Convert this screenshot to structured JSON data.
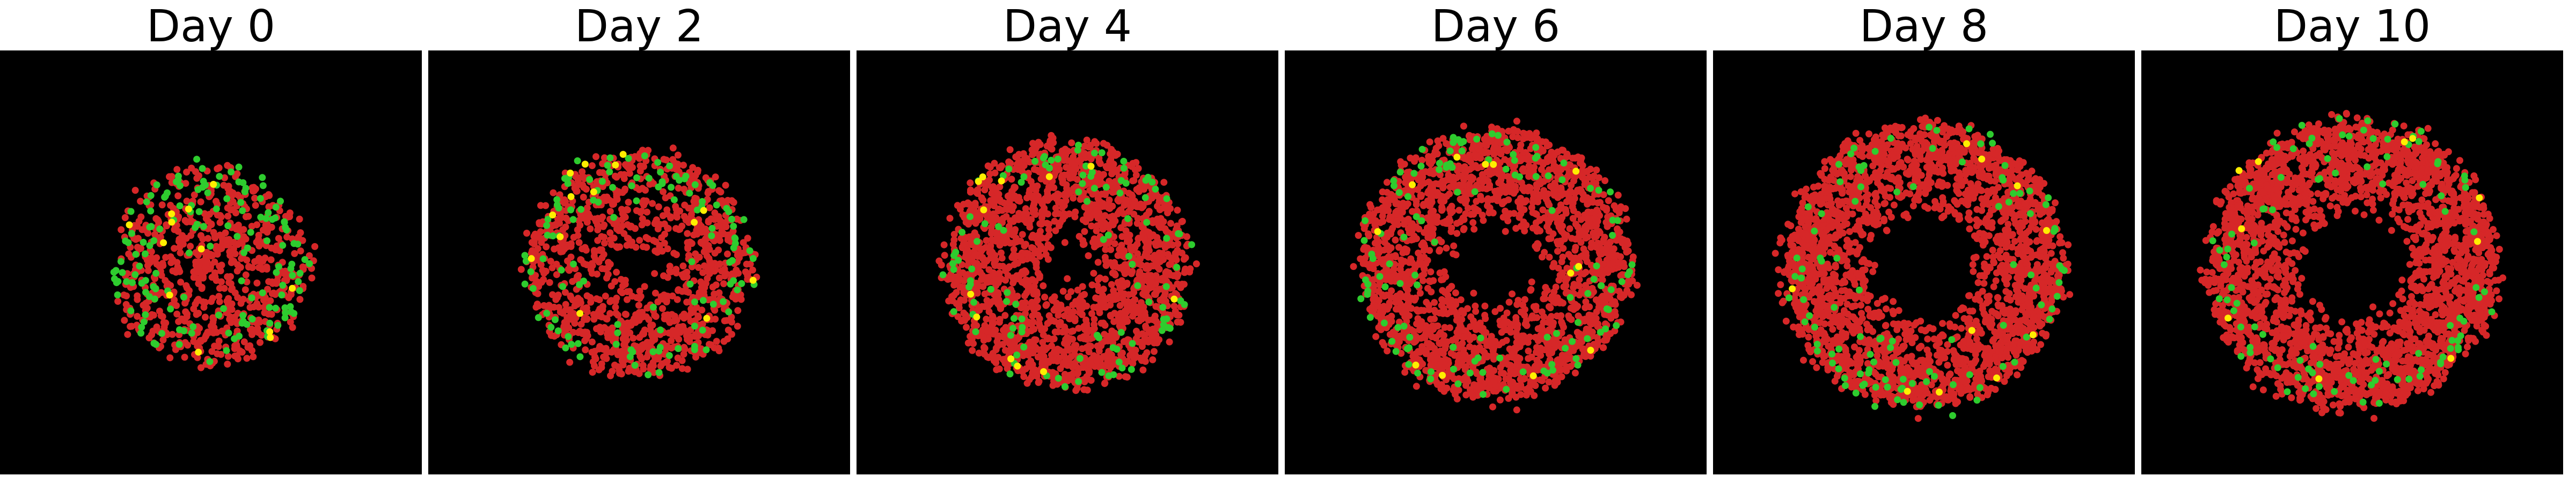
{
  "figure": {
    "background": "#000000",
    "cell_colors": {
      "red": "#d62728",
      "green": "#2ecc2e",
      "yellow": "#ffee00"
    },
    "panels": [
      {
        "title": "Day 0",
        "outer_radius_frac": 0.62,
        "inner_radius_frac": 0.0,
        "red": 700,
        "green": 150,
        "yellow": 12
      },
      {
        "title": "Day 2",
        "outer_radius_frac": 0.72,
        "inner_radius_frac": 0.1,
        "red": 1100,
        "green": 120,
        "yellow": 14
      },
      {
        "title": "Day 4",
        "outer_radius_frac": 0.78,
        "inner_radius_frac": 0.12,
        "red": 1900,
        "green": 110,
        "yellow": 12
      },
      {
        "title": "Day 6",
        "outer_radius_frac": 0.86,
        "inner_radius_frac": 0.25,
        "red": 2100,
        "green": 120,
        "yellow": 12
      },
      {
        "title": "Day 8",
        "outer_radius_frac": 0.9,
        "inner_radius_frac": 0.3,
        "red": 2400,
        "green": 110,
        "yellow": 10
      },
      {
        "title": "Day 10",
        "outer_radius_frac": 0.92,
        "inner_radius_frac": 0.3,
        "red": 2600,
        "green": 100,
        "yellow": 10
      }
    ]
  }
}
